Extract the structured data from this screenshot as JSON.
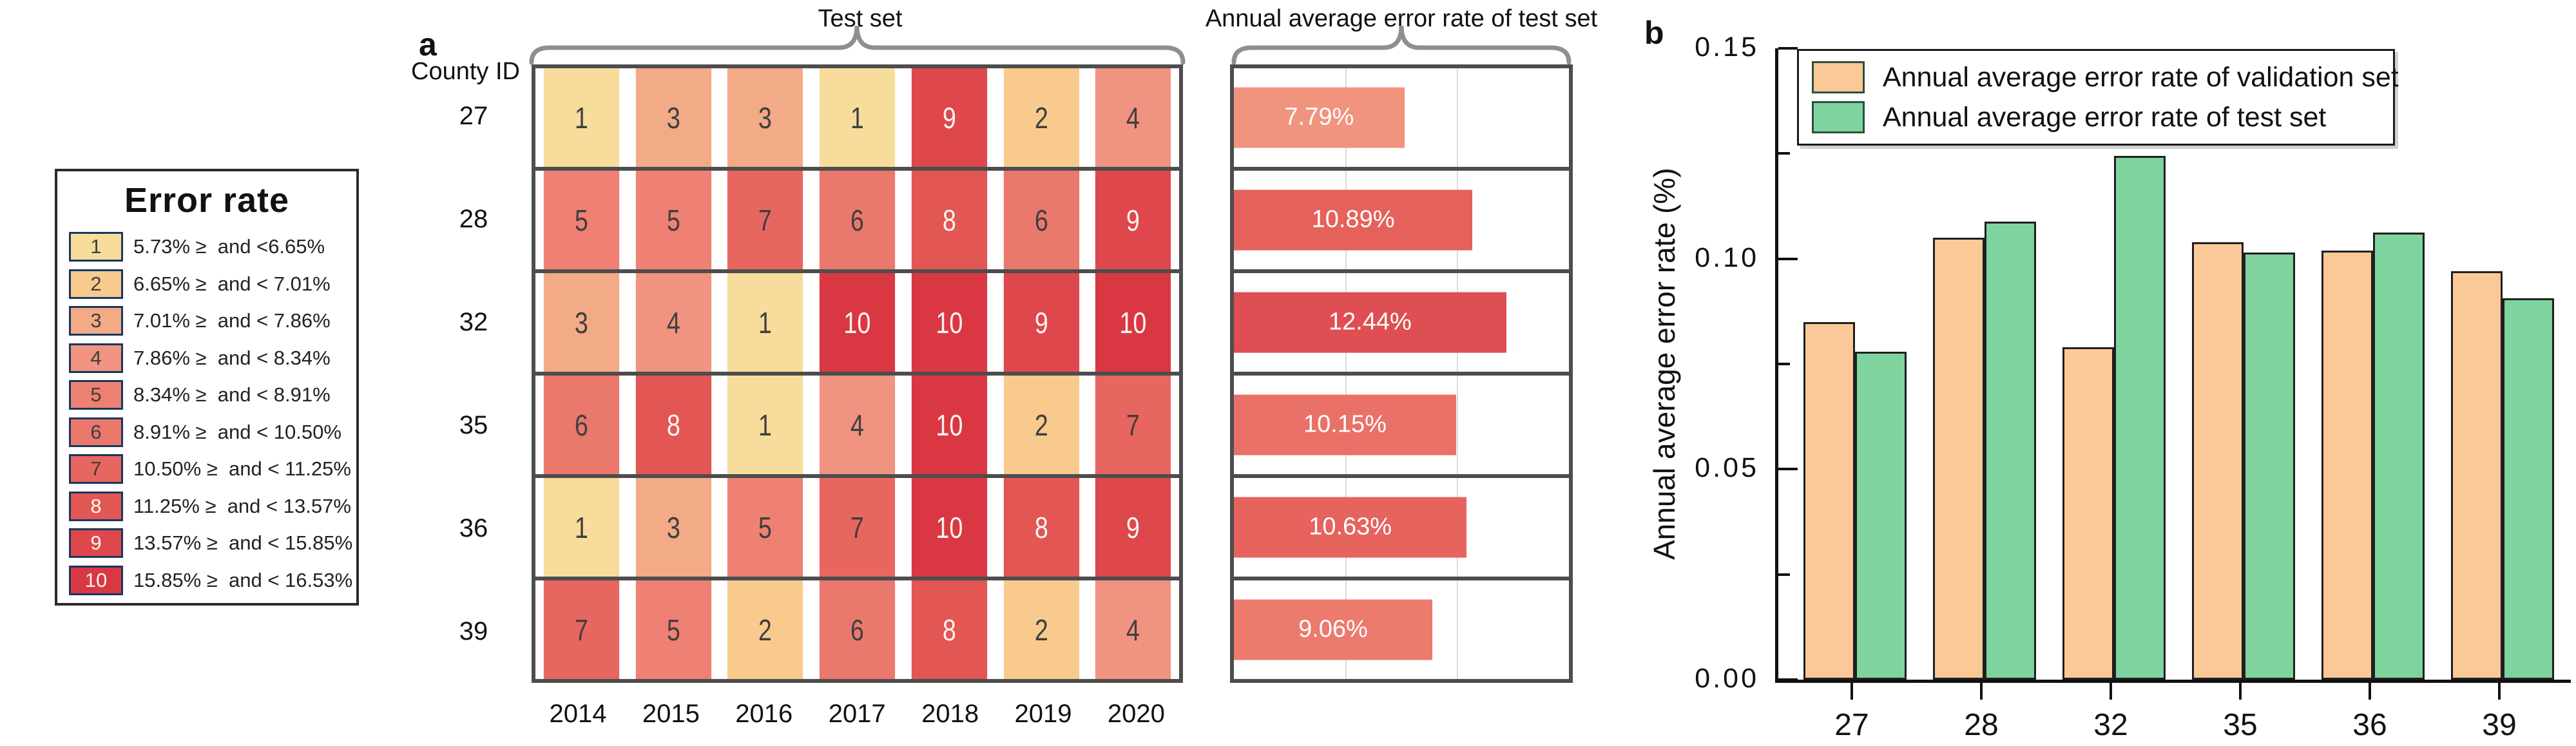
{
  "figure": {
    "panel_a_label": "a",
    "panel_b_label": "b",
    "county_id_label": "County ID"
  },
  "legend": {
    "title": "Error rate",
    "bins": [
      {
        "id": "1",
        "color": "#F7DC9B",
        "text_color": "#3f3f3f",
        "range": "5.73% ≥  and <6.65%"
      },
      {
        "id": "2",
        "color": "#F8CA8E",
        "text_color": "#3f3f3f",
        "range": "6.65% ≥  and < 7.01%"
      },
      {
        "id": "3",
        "color": "#F3AA86",
        "text_color": "#3f3f3f",
        "range": "7.01% ≥  and < 7.86%"
      },
      {
        "id": "4",
        "color": "#F09380",
        "text_color": "#3f3f3f",
        "range": "7.86% ≥  and < 8.34%"
      },
      {
        "id": "5",
        "color": "#EE8174",
        "text_color": "#3f3f3f",
        "range": "8.34% ≥  and < 8.91%"
      },
      {
        "id": "6",
        "color": "#EB786D",
        "text_color": "#3f3f3f",
        "range": "8.91% ≥  and < 10.50%"
      },
      {
        "id": "7",
        "color": "#E76760",
        "text_color": "#3f3f3f",
        "range": "10.50% ≥  and < 11.25%"
      },
      {
        "id": "8",
        "color": "#E25653",
        "text_color": "#fdf5f2",
        "range": "11.25% ≥  and < 13.57%"
      },
      {
        "id": "9",
        "color": "#DE474B",
        "text_color": "#fdf5f2",
        "range": "13.57% ≥  and < 15.85%"
      },
      {
        "id": "10",
        "color": "#D93843",
        "text_color": "#fdf5f2",
        "range": "15.85% ≥  and < 16.53%"
      }
    ]
  },
  "chart_data": [
    {
      "type": "heatmap",
      "title": "Test set",
      "rows": [
        "27",
        "28",
        "32",
        "35",
        "36",
        "39"
      ],
      "columns": [
        "2014",
        "2015",
        "2016",
        "2017",
        "2018",
        "2019",
        "2020"
      ],
      "values": [
        [
          1,
          3,
          3,
          1,
          9,
          2,
          4
        ],
        [
          5,
          5,
          7,
          6,
          8,
          6,
          9
        ],
        [
          3,
          4,
          1,
          10,
          10,
          9,
          10
        ],
        [
          6,
          8,
          1,
          4,
          10,
          2,
          7
        ],
        [
          1,
          3,
          5,
          7,
          10,
          8,
          9
        ],
        [
          7,
          5,
          2,
          6,
          8,
          2,
          4
        ]
      ],
      "value_meaning": "error-rate bin number, see Error rate legend"
    },
    {
      "type": "bar",
      "orientation": "horizontal",
      "title": "Annual average error rate of test set",
      "categories": [
        "27",
        "28",
        "32",
        "35",
        "36",
        "39"
      ],
      "values": [
        7.79,
        10.89,
        12.44,
        10.15,
        10.63,
        9.06
      ],
      "labels": [
        "7.79%",
        "10.89%",
        "12.44%",
        "10.15%",
        "10.63%",
        "9.06%"
      ],
      "bar_colors": [
        "#F0947E",
        "#E5625C",
        "#DF4E52",
        "#E97168",
        "#E6635E",
        "#EC7A6D"
      ],
      "xlim": [
        0,
        15.3
      ],
      "grid": "two light vertical gridlines at thirds"
    },
    {
      "type": "bar",
      "categories": [
        "27",
        "28",
        "32",
        "35",
        "36",
        "39"
      ],
      "series": [
        {
          "name": "Annual average error rate of validation set",
          "color": "#FBC997",
          "values": [
            0.085,
            0.105,
            0.079,
            0.104,
            0.102,
            0.097
          ]
        },
        {
          "name": "Annual average error rate of test set",
          "color": "#7FD39F",
          "values": [
            0.0779,
            0.1089,
            0.1244,
            0.1015,
            0.1063,
            0.0906
          ]
        }
      ],
      "ylabel": "Annual average error rate (%)",
      "ylim": [
        0,
        0.15
      ],
      "yticks": [
        "0.00",
        "0.05",
        "0.10",
        "0.15"
      ],
      "legend_position": "top-left",
      "grid": "off"
    }
  ]
}
